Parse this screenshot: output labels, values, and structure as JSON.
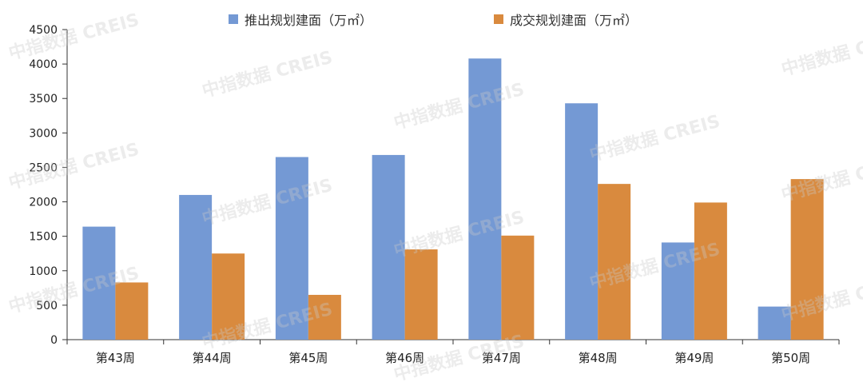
{
  "chart_data": {
    "type": "bar",
    "categories": [
      "第43周",
      "第44周",
      "第45周",
      "第46周",
      "第47周",
      "第48周",
      "第49周",
      "第50周"
    ],
    "series": [
      {
        "name": "推出规划建面（万㎡）",
        "color": "#7499d4",
        "values": [
          1640,
          2100,
          2650,
          2680,
          4080,
          3430,
          1410,
          480
        ]
      },
      {
        "name": "成交规划建面（万㎡）",
        "color": "#d98a3e",
        "values": [
          830,
          1250,
          650,
          1310,
          1510,
          2260,
          1990,
          2330
        ]
      }
    ],
    "ylim": [
      0,
      4500
    ],
    "yticks": [
      0,
      500,
      1000,
      1500,
      2000,
      2500,
      3000,
      3500,
      4000,
      4500
    ],
    "legend_position": "top-center",
    "grid": false
  },
  "watermark": "中指数据 CREIS"
}
